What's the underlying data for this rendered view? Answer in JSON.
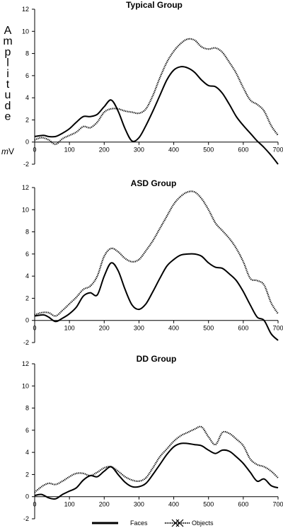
{
  "figure": {
    "ylabel": "Amplitude",
    "unit_prefix": "m",
    "unit_main": "V"
  },
  "legend": {
    "faces_label": "Faces",
    "objects_label": "Objects"
  },
  "chart_data": [
    {
      "type": "line",
      "title": "Typical Group",
      "xlim": [
        0,
        700
      ],
      "ylim": [
        -2,
        12
      ],
      "xticks": [
        0,
        100,
        200,
        300,
        400,
        500,
        600,
        700
      ],
      "yticks": [
        -2,
        0,
        2,
        4,
        6,
        8,
        10,
        12
      ],
      "series": [
        {
          "name": "Faces",
          "x": [
            0,
            25,
            40,
            60,
            80,
            100,
            120,
            140,
            160,
            180,
            200,
            220,
            240,
            260,
            280,
            300,
            320,
            340,
            360,
            380,
            400,
            420,
            440,
            460,
            480,
            500,
            520,
            540,
            560,
            580,
            600,
            620,
            640,
            660,
            680,
            700
          ],
          "values": [
            0.5,
            0.6,
            0.5,
            0.5,
            0.8,
            1.2,
            1.8,
            2.3,
            2.3,
            2.5,
            3.2,
            3.8,
            2.8,
            1.2,
            0.1,
            0.4,
            1.5,
            2.8,
            4.2,
            5.6,
            6.5,
            6.8,
            6.7,
            6.3,
            5.6,
            5.1,
            5.0,
            4.4,
            3.4,
            2.3,
            1.5,
            0.8,
            0.1,
            -0.5,
            -1.2,
            -2.0
          ]
        },
        {
          "name": "Objects",
          "x": [
            0,
            20,
            40,
            60,
            80,
            100,
            120,
            140,
            160,
            180,
            200,
            220,
            240,
            260,
            280,
            300,
            320,
            340,
            360,
            380,
            400,
            420,
            440,
            460,
            480,
            500,
            520,
            540,
            560,
            580,
            600,
            620,
            640,
            660,
            680,
            700
          ],
          "values": [
            0.2,
            0.4,
            0.2,
            -0.2,
            0.3,
            0.6,
            0.9,
            1.4,
            1.3,
            1.8,
            2.7,
            3.0,
            3.0,
            2.8,
            2.7,
            2.6,
            3.0,
            4.2,
            5.8,
            7.2,
            8.2,
            8.9,
            9.3,
            9.2,
            8.6,
            8.4,
            8.5,
            8.1,
            7.2,
            6.2,
            4.9,
            3.8,
            3.4,
            2.8,
            1.5,
            0.6
          ]
        }
      ]
    },
    {
      "type": "line",
      "title": "ASD Group",
      "xlim": [
        0,
        700
      ],
      "ylim": [
        -2,
        12
      ],
      "xticks": [
        0,
        100,
        200,
        300,
        400,
        500,
        600,
        700
      ],
      "yticks": [
        -2,
        0,
        2,
        4,
        6,
        8,
        10,
        12
      ],
      "series": [
        {
          "name": "Faces",
          "x": [
            0,
            25,
            40,
            60,
            80,
            100,
            120,
            140,
            160,
            180,
            200,
            220,
            240,
            260,
            280,
            300,
            320,
            340,
            360,
            380,
            400,
            420,
            440,
            460,
            480,
            500,
            520,
            540,
            560,
            580,
            600,
            620,
            640,
            660,
            680,
            700
          ],
          "values": [
            0.4,
            0.5,
            0.3,
            -0.1,
            0.2,
            0.6,
            1.2,
            2.2,
            2.5,
            2.3,
            4.0,
            5.2,
            4.5,
            2.8,
            1.4,
            1.0,
            1.5,
            2.6,
            3.8,
            4.9,
            5.5,
            5.9,
            6.0,
            6.0,
            5.8,
            5.2,
            4.8,
            4.7,
            4.2,
            3.6,
            2.6,
            1.4,
            0.3,
            0.0,
            -1.2,
            -1.8
          ]
        },
        {
          "name": "Objects",
          "x": [
            0,
            20,
            40,
            60,
            80,
            100,
            120,
            140,
            160,
            180,
            200,
            220,
            240,
            260,
            280,
            300,
            320,
            340,
            360,
            380,
            400,
            420,
            440,
            460,
            480,
            500,
            520,
            540,
            560,
            580,
            600,
            620,
            640,
            660,
            680,
            700
          ],
          "values": [
            0.5,
            0.7,
            0.7,
            0.4,
            0.9,
            1.5,
            2.1,
            2.8,
            3.1,
            4.0,
            5.8,
            6.5,
            6.2,
            5.6,
            5.3,
            5.5,
            6.3,
            7.2,
            8.3,
            9.4,
            10.5,
            11.2,
            11.6,
            11.6,
            11.0,
            10.0,
            8.8,
            8.1,
            7.4,
            6.5,
            5.3,
            3.8,
            3.6,
            3.2,
            1.6,
            0.6
          ]
        }
      ]
    },
    {
      "type": "line",
      "title": "DD Group",
      "xlim": [
        0,
        700
      ],
      "ylim": [
        -2,
        12
      ],
      "xticks": [
        0,
        100,
        200,
        300,
        400,
        500,
        600,
        700
      ],
      "yticks": [
        -2,
        0,
        2,
        4,
        6,
        8,
        10,
        12
      ],
      "series": [
        {
          "name": "Faces",
          "x": [
            0,
            20,
            40,
            60,
            80,
            100,
            120,
            140,
            160,
            180,
            200,
            220,
            240,
            260,
            280,
            300,
            320,
            340,
            360,
            380,
            400,
            420,
            440,
            460,
            480,
            500,
            520,
            540,
            560,
            580,
            600,
            620,
            640,
            660,
            680,
            700
          ],
          "values": [
            0.1,
            0.2,
            -0.1,
            -0.2,
            0.2,
            0.5,
            0.8,
            1.5,
            1.9,
            1.8,
            2.3,
            2.7,
            2.0,
            1.3,
            0.9,
            0.9,
            1.2,
            2.0,
            2.9,
            3.8,
            4.5,
            4.8,
            4.8,
            4.7,
            4.6,
            4.2,
            3.9,
            4.2,
            4.1,
            3.6,
            3.0,
            2.2,
            1.4,
            1.6,
            1.0,
            0.8
          ]
        },
        {
          "name": "Objects",
          "x": [
            0,
            20,
            40,
            60,
            80,
            100,
            120,
            140,
            160,
            180,
            200,
            220,
            240,
            260,
            280,
            300,
            320,
            340,
            360,
            380,
            400,
            420,
            440,
            460,
            480,
            500,
            520,
            540,
            560,
            580,
            600,
            620,
            640,
            660,
            680,
            700
          ],
          "values": [
            0.4,
            0.9,
            1.2,
            1.1,
            1.4,
            1.8,
            2.1,
            2.1,
            1.9,
            2.2,
            2.6,
            2.7,
            2.3,
            1.8,
            1.5,
            1.4,
            1.7,
            2.6,
            3.6,
            4.3,
            5.0,
            5.5,
            5.8,
            6.1,
            6.3,
            5.4,
            4.7,
            5.8,
            5.7,
            5.2,
            4.6,
            3.4,
            2.9,
            2.7,
            2.3,
            1.7
          ]
        }
      ]
    }
  ]
}
